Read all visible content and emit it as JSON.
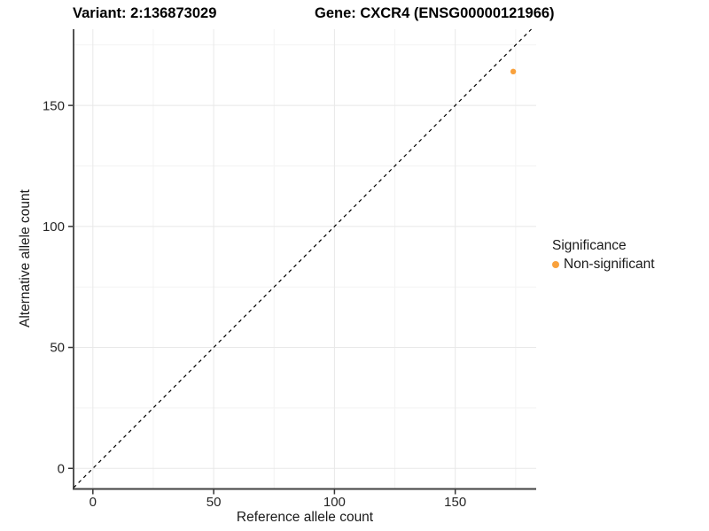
{
  "chart_data": {
    "type": "scatter",
    "title_left": "Variant: 2:136873029",
    "title_right": "Gene: CXCR4 (ENSG00000121966)",
    "xlabel": "Reference allele count",
    "ylabel": "Alternative allele count",
    "xlim": [
      -8,
      183.5
    ],
    "ylim": [
      -8.5,
      181.5
    ],
    "x_ticks": [
      0,
      50,
      100,
      150
    ],
    "y_ticks": [
      0,
      50,
      100,
      150
    ],
    "x_minor_ticks": [
      25,
      75,
      125,
      175
    ],
    "y_minor_ticks": [
      25,
      75,
      125,
      175
    ],
    "grid": true,
    "identity_line": {
      "style": "dashed",
      "color": "#000000",
      "slope": 1,
      "intercept": 0
    },
    "series": [
      {
        "name": "Non-significant",
        "color": "#F9A13C",
        "points": [
          {
            "x": 174,
            "y": 164
          }
        ]
      }
    ],
    "legend": {
      "title": "Significance",
      "position": "right",
      "items": [
        {
          "label": "Non-significant",
          "color": "#F9A13C"
        }
      ]
    },
    "colors": {
      "point_nonsignificant": "#F9A13C",
      "axis_line": "#404040",
      "tick_text": "#262626",
      "grid_major": "#e8e8e8",
      "grid_minor": "#f3f3f3",
      "background": "#ffffff"
    }
  }
}
